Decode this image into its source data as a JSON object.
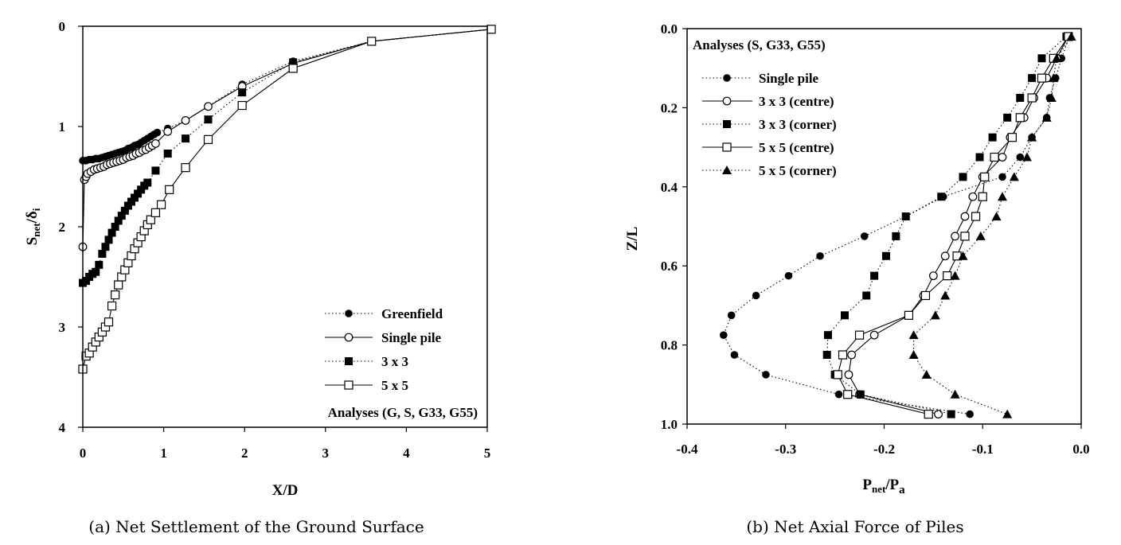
{
  "chart_data": [
    {
      "type": "line",
      "caption": "(a) Net Settlement of the Ground Surface",
      "xlabel": "X/D",
      "ylabel_main": "S",
      "ylabel_sub": "net",
      "ylabel_tail": "/δ",
      "ylabel_tail_sub": "i",
      "xlim": [
        0,
        5
      ],
      "ylim": [
        0,
        4
      ],
      "y_inverted": true,
      "xticks": [
        "0",
        "1",
        "2",
        "3",
        "4",
        "5"
      ],
      "yticks": [
        "0",
        "1",
        "2",
        "3",
        "4"
      ],
      "legend_note": "Analyses (G, S, G33, G55)",
      "legend_position": "bottom-right",
      "series": [
        {
          "name": "Greenfield",
          "marker": "filled-circle",
          "line": "dotted",
          "x": [
            0.0,
            0.04,
            0.08,
            0.12,
            0.16,
            0.2,
            0.24,
            0.28,
            0.32,
            0.36,
            0.4,
            0.44,
            0.48,
            0.52,
            0.56,
            0.6,
            0.64,
            0.68,
            0.72,
            0.76,
            0.8,
            0.84,
            0.88,
            0.92,
            1.05,
            1.27,
            1.55,
            1.97,
            2.6,
            3.57,
            5.05
          ],
          "y": [
            1.34,
            1.34,
            1.33,
            1.33,
            1.32,
            1.32,
            1.31,
            1.3,
            1.29,
            1.28,
            1.27,
            1.26,
            1.25,
            1.24,
            1.22,
            1.21,
            1.19,
            1.18,
            1.16,
            1.14,
            1.12,
            1.1,
            1.08,
            1.06,
            1.02,
            0.94,
            0.8,
            0.58,
            0.35,
            0.15,
            0.03
          ]
        },
        {
          "name": "Single pile",
          "marker": "open-circle",
          "line": "solid",
          "x": [
            0.0,
            0.02,
            0.04,
            0.06,
            0.1,
            0.14,
            0.18,
            0.22,
            0.26,
            0.3,
            0.34,
            0.38,
            0.42,
            0.46,
            0.5,
            0.54,
            0.58,
            0.62,
            0.66,
            0.7,
            0.74,
            0.78,
            0.82,
            0.86,
            0.9,
            1.05,
            1.27,
            1.55,
            1.97,
            2.6,
            3.57,
            5.05
          ],
          "y": [
            2.2,
            1.53,
            1.5,
            1.47,
            1.45,
            1.43,
            1.42,
            1.41,
            1.4,
            1.38,
            1.37,
            1.36,
            1.35,
            1.34,
            1.33,
            1.31,
            1.3,
            1.29,
            1.27,
            1.26,
            1.24,
            1.23,
            1.21,
            1.19,
            1.17,
            1.05,
            0.94,
            0.8,
            0.6,
            0.37,
            0.15,
            0.03
          ]
        },
        {
          "name": "3 x 3",
          "marker": "filled-square",
          "line": "dotted",
          "x": [
            0.0,
            0.04,
            0.08,
            0.12,
            0.16,
            0.2,
            0.24,
            0.28,
            0.32,
            0.36,
            0.4,
            0.44,
            0.48,
            0.52,
            0.56,
            0.6,
            0.64,
            0.68,
            0.72,
            0.76,
            0.8,
            0.9,
            1.05,
            1.27,
            1.55,
            1.97,
            2.6,
            3.57,
            5.05
          ],
          "y": [
            2.56,
            2.54,
            2.5,
            2.47,
            2.45,
            2.38,
            2.27,
            2.2,
            2.13,
            2.06,
            2.0,
            1.94,
            1.89,
            1.84,
            1.79,
            1.75,
            1.71,
            1.67,
            1.63,
            1.59,
            1.56,
            1.44,
            1.27,
            1.12,
            0.93,
            0.66,
            0.36,
            0.15,
            0.03
          ]
        },
        {
          "name": "5 x 5",
          "marker": "open-square",
          "line": "solid",
          "x": [
            0.0,
            0.04,
            0.08,
            0.12,
            0.16,
            0.2,
            0.24,
            0.28,
            0.32,
            0.36,
            0.4,
            0.44,
            0.48,
            0.52,
            0.56,
            0.6,
            0.64,
            0.68,
            0.72,
            0.76,
            0.8,
            0.84,
            0.9,
            0.97,
            1.07,
            1.27,
            1.55,
            1.97,
            2.6,
            3.57,
            5.05
          ],
          "y": [
            3.42,
            3.29,
            3.26,
            3.2,
            3.15,
            3.1,
            3.05,
            3.0,
            2.95,
            2.79,
            2.68,
            2.58,
            2.5,
            2.43,
            2.36,
            2.29,
            2.22,
            2.16,
            2.1,
            2.04,
            1.98,
            1.93,
            1.86,
            1.78,
            1.63,
            1.41,
            1.13,
            0.79,
            0.42,
            0.15,
            0.03
          ]
        }
      ]
    },
    {
      "type": "line",
      "caption": "(b) Net Axial Force of Piles",
      "xlabel_main": "P",
      "xlabel_sub": "net",
      "xlabel_mid": "/P",
      "xlabel_sub2": "a",
      "ylabel": "Z/L",
      "xlim": [
        -0.4,
        0.0
      ],
      "ylim": [
        0.0,
        1.0
      ],
      "y_inverted": true,
      "xticks": [
        "-0.4",
        "-0.3",
        "-0.2",
        "-0.1",
        "0.0"
      ],
      "yticks": [
        "0.0",
        "0.2",
        "0.4",
        "0.6",
        "0.8",
        "1.0"
      ],
      "legend_note": "Analyses (S, G33, G55)",
      "legend_position": "top-left",
      "series": [
        {
          "name": "Single pile",
          "marker": "filled-circle",
          "line": "dotted",
          "z": [
            0.02,
            0.075,
            0.125,
            0.175,
            0.225,
            0.275,
            0.325,
            0.375,
            0.425,
            0.475,
            0.525,
            0.575,
            0.625,
            0.675,
            0.725,
            0.775,
            0.825,
            0.875,
            0.925,
            0.975
          ],
          "p": [
            -0.012,
            -0.02,
            -0.026,
            -0.032,
            -0.035,
            -0.05,
            -0.062,
            -0.08,
            -0.14,
            -0.178,
            -0.22,
            -0.265,
            -0.297,
            -0.33,
            -0.355,
            -0.363,
            -0.352,
            -0.32,
            -0.246,
            -0.113
          ]
        },
        {
          "name": "3 x 3 (centre)",
          "marker": "open-circle",
          "line": "solid",
          "z": [
            0.02,
            0.075,
            0.125,
            0.175,
            0.225,
            0.275,
            0.325,
            0.375,
            0.425,
            0.475,
            0.525,
            0.575,
            0.625,
            0.675,
            0.725,
            0.775,
            0.825,
            0.875,
            0.925,
            0.975
          ],
          "p": [
            -0.013,
            -0.025,
            -0.035,
            -0.048,
            -0.058,
            -0.072,
            -0.08,
            -0.1,
            -0.11,
            -0.118,
            -0.128,
            -0.138,
            -0.15,
            -0.16,
            -0.175,
            -0.21,
            -0.233,
            -0.236,
            -0.225,
            -0.145
          ]
        },
        {
          "name": "3 x 3 (corner)",
          "marker": "filled-square",
          "line": "dotted",
          "z": [
            0.02,
            0.075,
            0.125,
            0.175,
            0.225,
            0.275,
            0.325,
            0.375,
            0.425,
            0.475,
            0.525,
            0.575,
            0.625,
            0.675,
            0.725,
            0.775,
            0.825,
            0.875,
            0.925,
            0.975
          ],
          "p": [
            -0.015,
            -0.04,
            -0.05,
            -0.062,
            -0.075,
            -0.09,
            -0.103,
            -0.12,
            -0.142,
            -0.178,
            -0.188,
            -0.198,
            -0.21,
            -0.218,
            -0.24,
            -0.257,
            -0.258,
            -0.25,
            -0.224,
            -0.132
          ]
        },
        {
          "name": "5 x 5 (centre)",
          "marker": "open-square",
          "line": "solid",
          "z": [
            0.02,
            0.075,
            0.125,
            0.175,
            0.225,
            0.275,
            0.325,
            0.375,
            0.425,
            0.475,
            0.525,
            0.575,
            0.625,
            0.675,
            0.725,
            0.775,
            0.825,
            0.875,
            0.925,
            0.975
          ],
          "p": [
            -0.013,
            -0.028,
            -0.04,
            -0.05,
            -0.062,
            -0.07,
            -0.088,
            -0.098,
            -0.1,
            -0.107,
            -0.118,
            -0.126,
            -0.136,
            -0.158,
            -0.175,
            -0.225,
            -0.242,
            -0.247,
            -0.237,
            -0.155
          ]
        },
        {
          "name": "5 x 5 (corner)",
          "marker": "filled-triangle",
          "line": "dotted",
          "z": [
            0.02,
            0.075,
            0.125,
            0.175,
            0.225,
            0.275,
            0.325,
            0.375,
            0.425,
            0.475,
            0.525,
            0.575,
            0.625,
            0.675,
            0.725,
            0.775,
            0.825,
            0.875,
            0.925,
            0.975
          ],
          "p": [
            -0.01,
            -0.025,
            -0.028,
            -0.03,
            -0.035,
            -0.05,
            -0.055,
            -0.068,
            -0.08,
            -0.086,
            -0.102,
            -0.12,
            -0.128,
            -0.138,
            -0.148,
            -0.17,
            -0.17,
            -0.157,
            -0.128,
            -0.075
          ]
        }
      ]
    }
  ]
}
